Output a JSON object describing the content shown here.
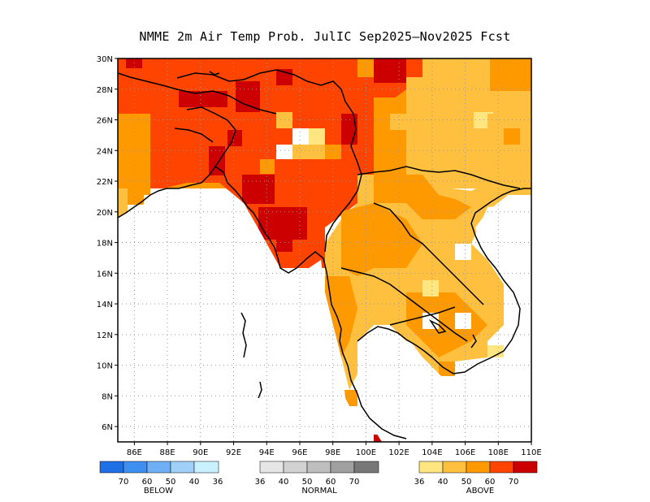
{
  "title": "NMME 2m Air Temp Prob. JulIC  Sep2025–Nov2025 Fcst",
  "map": {
    "lat_labels": [
      "30N",
      "28N",
      "26N",
      "24N",
      "22N",
      "20N",
      "18N",
      "16N",
      "14N",
      "12N",
      "10N",
      "8N",
      "6N"
    ],
    "lon_labels": [
      "86E",
      "88E",
      "90E",
      "92E",
      "94E",
      "96E",
      "98E",
      "100E",
      "102E",
      "104E",
      "106E",
      "108E",
      "110E"
    ]
  },
  "colors": {
    "above_36_40": "#ffe680",
    "above_40_50": "#ffc040",
    "above_50_60": "#ff9900",
    "above_60_70": "#ff4400",
    "above_70": "#cc0000",
    "normal": [
      "#e6e6e6",
      "#d2d2d2",
      "#bebebe",
      "#a0a0a0",
      "#787878"
    ],
    "below": [
      "#1f6fe6",
      "#3f8ff0",
      "#6fb0f5",
      "#a0d0f8",
      "#c8f0ff"
    ]
  },
  "legend": {
    "below": {
      "label": "BELOW",
      "ticks": [
        "70",
        "60",
        "50",
        "40",
        "36"
      ]
    },
    "normal": {
      "label": "NORMAL",
      "ticks": [
        "36",
        "40",
        "50",
        "60",
        "70"
      ]
    },
    "above": {
      "label": "ABOVE",
      "ticks": [
        "36",
        "40",
        "50",
        "60",
        "70"
      ]
    }
  }
}
